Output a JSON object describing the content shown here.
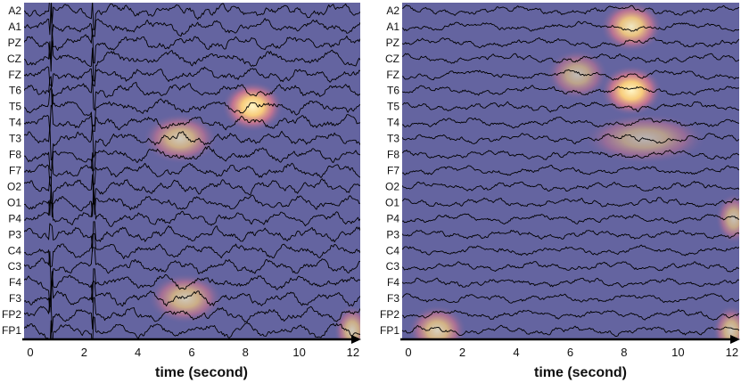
{
  "chart_data": [
    {
      "type": "heatmap",
      "panel": "left",
      "title": "",
      "xlabel": "time (second)",
      "xlim": [
        0,
        12.5
      ],
      "xticks": [
        0,
        2,
        4,
        6,
        8,
        10,
        12
      ],
      "channels": [
        "A2",
        "A1",
        "PZ",
        "CZ",
        "FZ",
        "T6",
        "T5",
        "T4",
        "T3",
        "F8",
        "F7",
        "O2",
        "O1",
        "P4",
        "P3",
        "C4",
        "C3",
        "F4",
        "F3",
        "FP2",
        "FP1"
      ],
      "background_color": "#6464a0",
      "hotspots": [
        {
          "channel": "T5",
          "center_time": 8.5,
          "width_s": 1.6,
          "intensity": 1.0
        },
        {
          "channel": "T3",
          "center_time": 5.8,
          "width_s": 2.0,
          "intensity": 0.7
        },
        {
          "channel": "F3",
          "center_time": 6.0,
          "width_s": 2.0,
          "intensity": 0.7
        },
        {
          "channel": "FP1",
          "center_time": 12.2,
          "width_s": 0.8,
          "intensity": 0.7
        }
      ]
    },
    {
      "type": "heatmap",
      "panel": "right",
      "title": "",
      "xlabel": "time (second)",
      "xlim": [
        0,
        12.5
      ],
      "xticks": [
        0,
        2,
        4,
        6,
        8,
        10,
        12
      ],
      "channels": [
        "A2",
        "A1",
        "PZ",
        "CZ",
        "FZ",
        "T6",
        "T5",
        "T4",
        "T3",
        "F8",
        "F7",
        "O2",
        "O1",
        "P4",
        "P3",
        "C4",
        "C3",
        "F4",
        "F3",
        "FP2",
        "FP1"
      ],
      "background_color": "#6464a0",
      "hotspots": [
        {
          "channel": "A1",
          "center_time": 8.5,
          "width_s": 1.6,
          "intensity": 0.9
        },
        {
          "channel": "FZ",
          "center_time": 6.5,
          "width_s": 1.6,
          "intensity": 0.6
        },
        {
          "channel": "T6",
          "center_time": 8.5,
          "width_s": 1.6,
          "intensity": 1.0
        },
        {
          "channel": "T3",
          "center_time": 9.0,
          "width_s": 3.5,
          "intensity": 0.55
        },
        {
          "channel": "P4",
          "center_time": 12.3,
          "width_s": 0.8,
          "intensity": 0.65
        },
        {
          "channel": "FP1",
          "center_time": 1.3,
          "width_s": 1.5,
          "intensity": 0.75
        },
        {
          "channel": "FP1",
          "center_time": 12.2,
          "width_s": 0.8,
          "intensity": 0.7
        }
      ]
    }
  ]
}
